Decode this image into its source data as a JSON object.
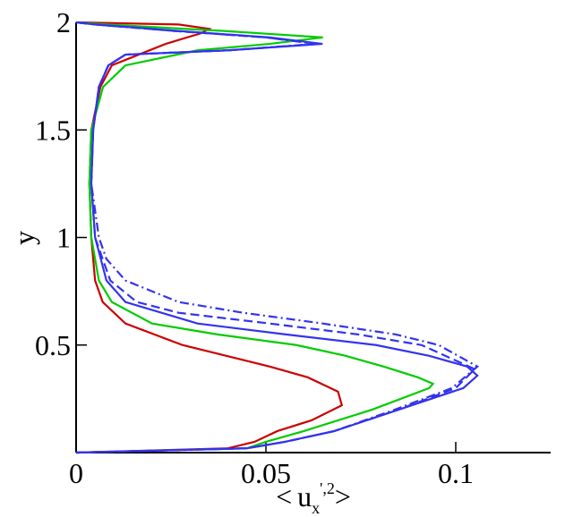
{
  "chart_data": {
    "type": "line",
    "xlabel": {
      "open": "<",
      "base": "u",
      "sub": "x",
      "sup": "',2",
      "close": ">"
    },
    "ylabel": "y",
    "xlim": [
      0,
      0.125
    ],
    "ylim": [
      0,
      2
    ],
    "xticks": [
      0,
      0.05,
      0.1
    ],
    "yticks": [
      0.5,
      1,
      1.5,
      2
    ],
    "series": [
      {
        "color": "#cc0000",
        "dash": "solid",
        "x": [
          0,
          0.04,
          0.047,
          0.053,
          0.062,
          0.07,
          0.069,
          0.061,
          0.051,
          0.028,
          0.013,
          0.007,
          0.005,
          0.004,
          0.0035,
          0.004,
          0.0064,
          0.0094,
          0.0236,
          0.033,
          0.035,
          0.027,
          0
        ],
        "values": [
          0,
          0.02,
          0.05,
          0.1,
          0.15,
          0.22,
          0.283,
          0.35,
          0.4,
          0.5,
          0.6,
          0.7,
          0.8,
          1.0,
          1.25,
          1.5,
          1.7,
          1.8,
          1.9,
          1.95,
          1.97,
          1.99,
          2.0
        ]
      },
      {
        "color": "#00cc00",
        "dash": "solid",
        "x": [
          0,
          0.045,
          0.05,
          0.06,
          0.078,
          0.093,
          0.094,
          0.09,
          0.081,
          0.071,
          0.058,
          0.037,
          0.02,
          0.0094,
          0.006,
          0.004,
          0.0035,
          0.004,
          0.0071,
          0.013,
          0.032,
          0.051,
          0.065,
          0.039,
          0.008,
          0
        ],
        "values": [
          0,
          0.02,
          0.05,
          0.1,
          0.2,
          0.3,
          0.32,
          0.35,
          0.4,
          0.45,
          0.5,
          0.55,
          0.6,
          0.7,
          0.8,
          1.0,
          1.25,
          1.5,
          1.7,
          1.8,
          1.87,
          1.9,
          1.93,
          1.96,
          1.99,
          2.0
        ]
      },
      {
        "color": "#3333ee",
        "dash": "solid",
        "x": [
          0,
          0.045,
          0.055,
          0.068,
          0.085,
          0.102,
          0.1057,
          0.103,
          0.093,
          0.079,
          0.055,
          0.032,
          0.013,
          0.008,
          0.005,
          0.004,
          0.0045,
          0.006,
          0.0085,
          0.013,
          0.04,
          0.0649,
          0.051,
          0.027,
          0.005,
          0
        ],
        "values": [
          0,
          0.02,
          0.05,
          0.1,
          0.2,
          0.3,
          0.358,
          0.4,
          0.45,
          0.5,
          0.55,
          0.6,
          0.7,
          0.8,
          1.0,
          1.25,
          1.5,
          1.7,
          1.8,
          1.85,
          1.87,
          1.9,
          1.93,
          1.96,
          1.99,
          2.0
        ]
      },
      {
        "color": "#3333ee",
        "dash": "dashed",
        "x": [
          0,
          0.045,
          0.055,
          0.068,
          0.085,
          0.1,
          0.105,
          0.091,
          0.074,
          0.051,
          0.027,
          0.016,
          0.009,
          0.005,
          0.004,
          0.0045,
          0.006,
          0.0085,
          0.013,
          0.04,
          0.064,
          0.05,
          0.026,
          0.005,
          0
        ],
        "values": [
          0,
          0.02,
          0.05,
          0.1,
          0.2,
          0.3,
          0.388,
          0.5,
          0.55,
          0.6,
          0.65,
          0.7,
          0.8,
          1.0,
          1.25,
          1.5,
          1.7,
          1.8,
          1.85,
          1.87,
          1.9,
          1.93,
          1.96,
          1.99,
          2.0
        ]
      },
      {
        "color": "#3333ee",
        "dash": "dashdot",
        "x": [
          0,
          0.045,
          0.055,
          0.068,
          0.084,
          0.099,
          0.1057,
          0.0955,
          0.084,
          0.065,
          0.044,
          0.027,
          0.013,
          0.008,
          0.006,
          0.004,
          0.0045,
          0.006,
          0.0085,
          0.013,
          0.04,
          0.063,
          0.05,
          0.026,
          0.005,
          0
        ],
        "values": [
          0,
          0.02,
          0.05,
          0.1,
          0.2,
          0.3,
          0.4,
          0.5,
          0.55,
          0.6,
          0.65,
          0.7,
          0.8,
          0.9,
          1.0,
          1.25,
          1.5,
          1.7,
          1.8,
          1.85,
          1.87,
          1.9,
          1.93,
          1.96,
          1.99,
          2.0
        ]
      }
    ]
  }
}
